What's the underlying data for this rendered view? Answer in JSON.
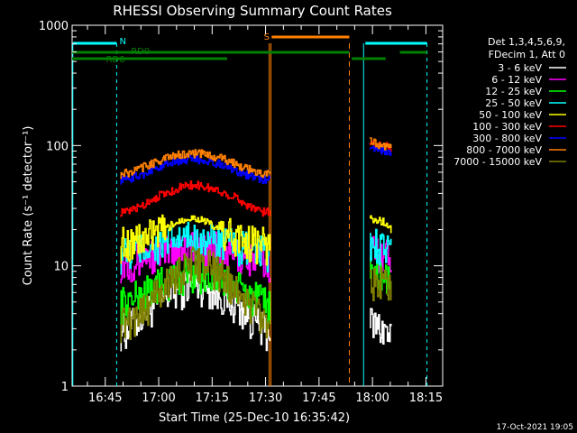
{
  "chart_data": {
    "type": "line",
    "title": "RHESSI Observing Summary Count Rates",
    "xlabel": "Start Time (25-Dec-10 16:35:42)",
    "ylabel": "Count Rate (s⁻¹ detector⁻¹)",
    "yscale": "log",
    "ylim": [
      1,
      1000
    ],
    "xlim_minutes": [
      0,
      104
    ],
    "yticks": [
      {
        "v": 1,
        "label": "1"
      },
      {
        "v": 10,
        "label": "10"
      },
      {
        "v": 100,
        "label": "100"
      },
      {
        "v": 1000,
        "label": "1000"
      }
    ],
    "xticks": [
      {
        "v": 9.3,
        "label": "16:45"
      },
      {
        "v": 24.3,
        "label": "17:00"
      },
      {
        "v": 39.3,
        "label": "17:15"
      },
      {
        "v": 54.3,
        "label": "17:30"
      },
      {
        "v": 69.3,
        "label": "17:45"
      },
      {
        "v": 84.3,
        "label": "18:00"
      },
      {
        "v": 99.3,
        "label": "18:15"
      }
    ],
    "legend_header": [
      "Det 1,3,4,5,6,9,",
      "FDecim 1, Att 0"
    ],
    "legend_position": "right",
    "series": [
      {
        "name": "3 - 6 keV",
        "color": "#ffffff",
        "seg1": [
          3,
          3,
          3.5,
          4,
          4.5,
          5,
          5.5,
          6,
          6.5,
          7,
          7.2,
          7,
          6.5,
          6,
          5.5,
          5,
          4.5,
          4,
          3.5,
          3,
          3
        ],
        "seg2": [
          3.5,
          3.2,
          3,
          2.5
        ]
      },
      {
        "name": "6 - 12 keV",
        "color": "#ff00ff",
        "seg1": [
          11,
          11,
          11.5,
          12,
          12.5,
          13,
          13.5,
          14,
          14.5,
          15,
          15,
          15,
          14.5,
          14,
          13.5,
          13,
          12.5,
          12,
          11.5,
          11,
          11
        ],
        "seg2": [
          14,
          13.5,
          13,
          12
        ]
      },
      {
        "name": "12 - 25 keV",
        "color": "#00ff00",
        "seg1": [
          5,
          5,
          5.5,
          6,
          6.5,
          7,
          7.5,
          8,
          8.5,
          9,
          9,
          9,
          8.5,
          8,
          7.5,
          7,
          6.5,
          6,
          5.5,
          5,
          5
        ],
        "seg2": [
          9,
          8.5,
          8,
          7
        ]
      },
      {
        "name": "25 - 50 keV",
        "color": "#00ffff",
        "seg1": [
          13,
          13,
          13.5,
          14,
          14.5,
          15,
          15.5,
          16,
          16.5,
          17,
          17,
          17,
          16.5,
          16,
          15.5,
          15,
          14.5,
          14,
          13.5,
          13,
          13
        ],
        "seg2": [
          16,
          15.5,
          15,
          14
        ]
      },
      {
        "name": "50 - 100 keV",
        "color": "#ffff00",
        "seg1": [
          16,
          16,
          16.5,
          17,
          18,
          19,
          20,
          22,
          24,
          25,
          25,
          24,
          22,
          20,
          19,
          18,
          17,
          16.5,
          16,
          15.5,
          15
        ],
        "seg2": [
          25,
          24,
          23,
          20
        ]
      },
      {
        "name": "100 - 300 keV",
        "color": "#ff0000",
        "seg1": [
          28,
          28,
          30,
          32,
          35,
          38,
          40,
          42,
          45,
          47,
          47,
          46,
          44,
          42,
          40,
          38,
          35,
          32,
          30,
          28,
          28
        ],
        "seg2": [
          105,
          102,
          100,
          95
        ]
      },
      {
        "name": "300 - 800 keV",
        "color": "#0000ff",
        "seg1": [
          52,
          53,
          55,
          58,
          62,
          66,
          70,
          73,
          75,
          77,
          77,
          76,
          74,
          71,
          68,
          64,
          60,
          57,
          54,
          52,
          52
        ],
        "seg2": [
          100,
          95,
          90,
          85
        ]
      },
      {
        "name": "800 - 7000 keV",
        "color": "#ff8000",
        "seg1": [
          58,
          59,
          62,
          66,
          70,
          74,
          78,
          82,
          84,
          86,
          86,
          85,
          83,
          80,
          76,
          72,
          68,
          64,
          61,
          58,
          58
        ],
        "seg2": [
          108,
          104,
          100,
          95
        ]
      },
      {
        "name": "7000 - 15000 keV",
        "color": "#808000",
        "seg1": [
          3.5,
          3.5,
          4,
          4.5,
          5,
          6,
          7,
          8,
          9,
          10,
          11,
          10.5,
          10,
          9,
          8,
          7,
          6,
          5,
          4.5,
          4,
          3.5
        ],
        "seg2": [
          8,
          7.5,
          7,
          6
        ]
      }
    ],
    "seg1_minutes": [
      13.5,
      55.5
    ],
    "seg1_gap_after_minutes": 19,
    "seg2_minutes": [
      83.5,
      89.5
    ],
    "annotations": {
      "N_label": "N",
      "S_label": "S",
      "RD0_label": "RD0",
      "RD6_label": "RD6"
    },
    "timestamp": "17-Oct-2021 19:05"
  }
}
